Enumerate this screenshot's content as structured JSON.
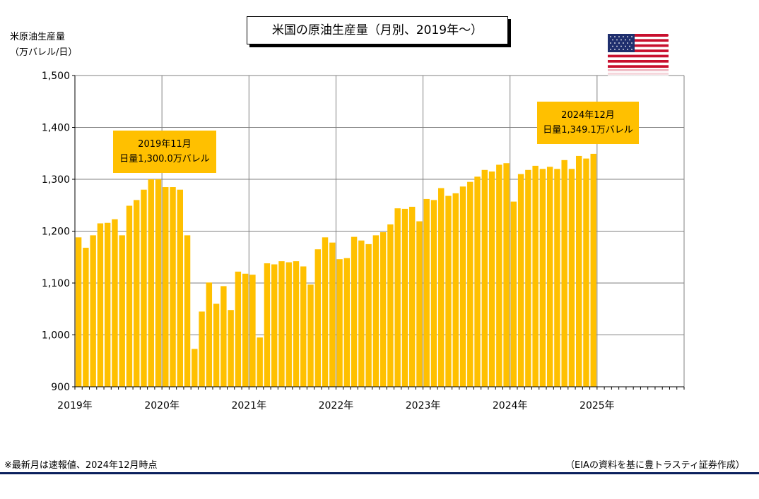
{
  "title": "米国の原油生産量（月別、2019年～）",
  "ylabel": {
    "line1": "米原油生産量",
    "line2": "（万バレル/日）"
  },
  "callout_peak_2019": {
    "line1": "2019年11月",
    "line2": "日量1,300.0万バレル"
  },
  "callout_latest": {
    "line1": "2024年12月",
    "line2": "日量1,349.1万バレル"
  },
  "footnote_left": "※最新月は速報値、2024年12月時点",
  "footnote_right": "（EIAの資料を基に豊トラスティ証券作成）",
  "flag_icon": "us-flag-icon",
  "colors": {
    "bar": "#FFC000",
    "grid": "#808080",
    "rule": "#0a1f5c",
    "callout": "#FFC000"
  },
  "chart_data": {
    "type": "bar",
    "ylim": [
      900,
      1500
    ],
    "yticks": [
      900,
      1000,
      1100,
      1200,
      1300,
      1400,
      1500
    ],
    "ytick_labels": [
      "900",
      "1,000",
      "1,100",
      "1,200",
      "1,300",
      "1,400",
      "1,500"
    ],
    "xlim": [
      "2019-01",
      "2025-12"
    ],
    "xtick_labels": [
      "2019年",
      "2020年",
      "2021年",
      "2022年",
      "2023年",
      "2024年",
      "2025年"
    ],
    "grid": true,
    "series": [
      {
        "x": [
          "2019-01",
          "2019-02",
          "2019-03",
          "2019-04",
          "2019-05",
          "2019-06",
          "2019-07",
          "2019-08",
          "2019-09",
          "2019-10",
          "2019-11",
          "2019-12",
          "2020-01",
          "2020-02",
          "2020-03",
          "2020-04",
          "2020-05",
          "2020-06",
          "2020-07",
          "2020-08",
          "2020-09",
          "2020-10",
          "2020-11",
          "2020-12",
          "2021-01",
          "2021-02",
          "2021-03",
          "2021-04",
          "2021-05",
          "2021-06",
          "2021-07",
          "2021-08",
          "2021-09",
          "2021-10",
          "2021-11",
          "2021-12",
          "2022-01",
          "2022-02",
          "2022-03",
          "2022-04",
          "2022-05",
          "2022-06",
          "2022-07",
          "2022-08",
          "2022-09",
          "2022-10",
          "2022-11",
          "2022-12",
          "2023-01",
          "2023-02",
          "2023-03",
          "2023-04",
          "2023-05",
          "2023-06",
          "2023-07",
          "2023-08",
          "2023-09",
          "2023-10",
          "2023-11",
          "2023-12",
          "2024-01",
          "2024-02",
          "2024-03",
          "2024-04",
          "2024-05",
          "2024-06",
          "2024-07",
          "2024-08",
          "2024-09",
          "2024-10",
          "2024-11",
          "2024-12"
        ],
        "values": [
          1188,
          1168,
          1192,
          1215,
          1216,
          1223,
          1192,
          1249,
          1260,
          1280,
          1300,
          1300,
          1285,
          1285,
          1280,
          1192,
          973,
          1045,
          1101,
          1060,
          1094,
          1048,
          1122,
          1118,
          1116,
          995,
          1138,
          1136,
          1142,
          1140,
          1142,
          1132,
          1097,
          1165,
          1188,
          1178,
          1146,
          1148,
          1189,
          1182,
          1175,
          1192,
          1198,
          1213,
          1244,
          1243,
          1247,
          1219,
          1262,
          1260,
          1283,
          1268,
          1273,
          1286,
          1295,
          1305,
          1318,
          1315,
          1328,
          1331,
          1257,
          1310,
          1318,
          1326,
          1320,
          1324,
          1320,
          1337,
          1320,
          1345,
          1340,
          1349.1
        ]
      }
    ]
  }
}
